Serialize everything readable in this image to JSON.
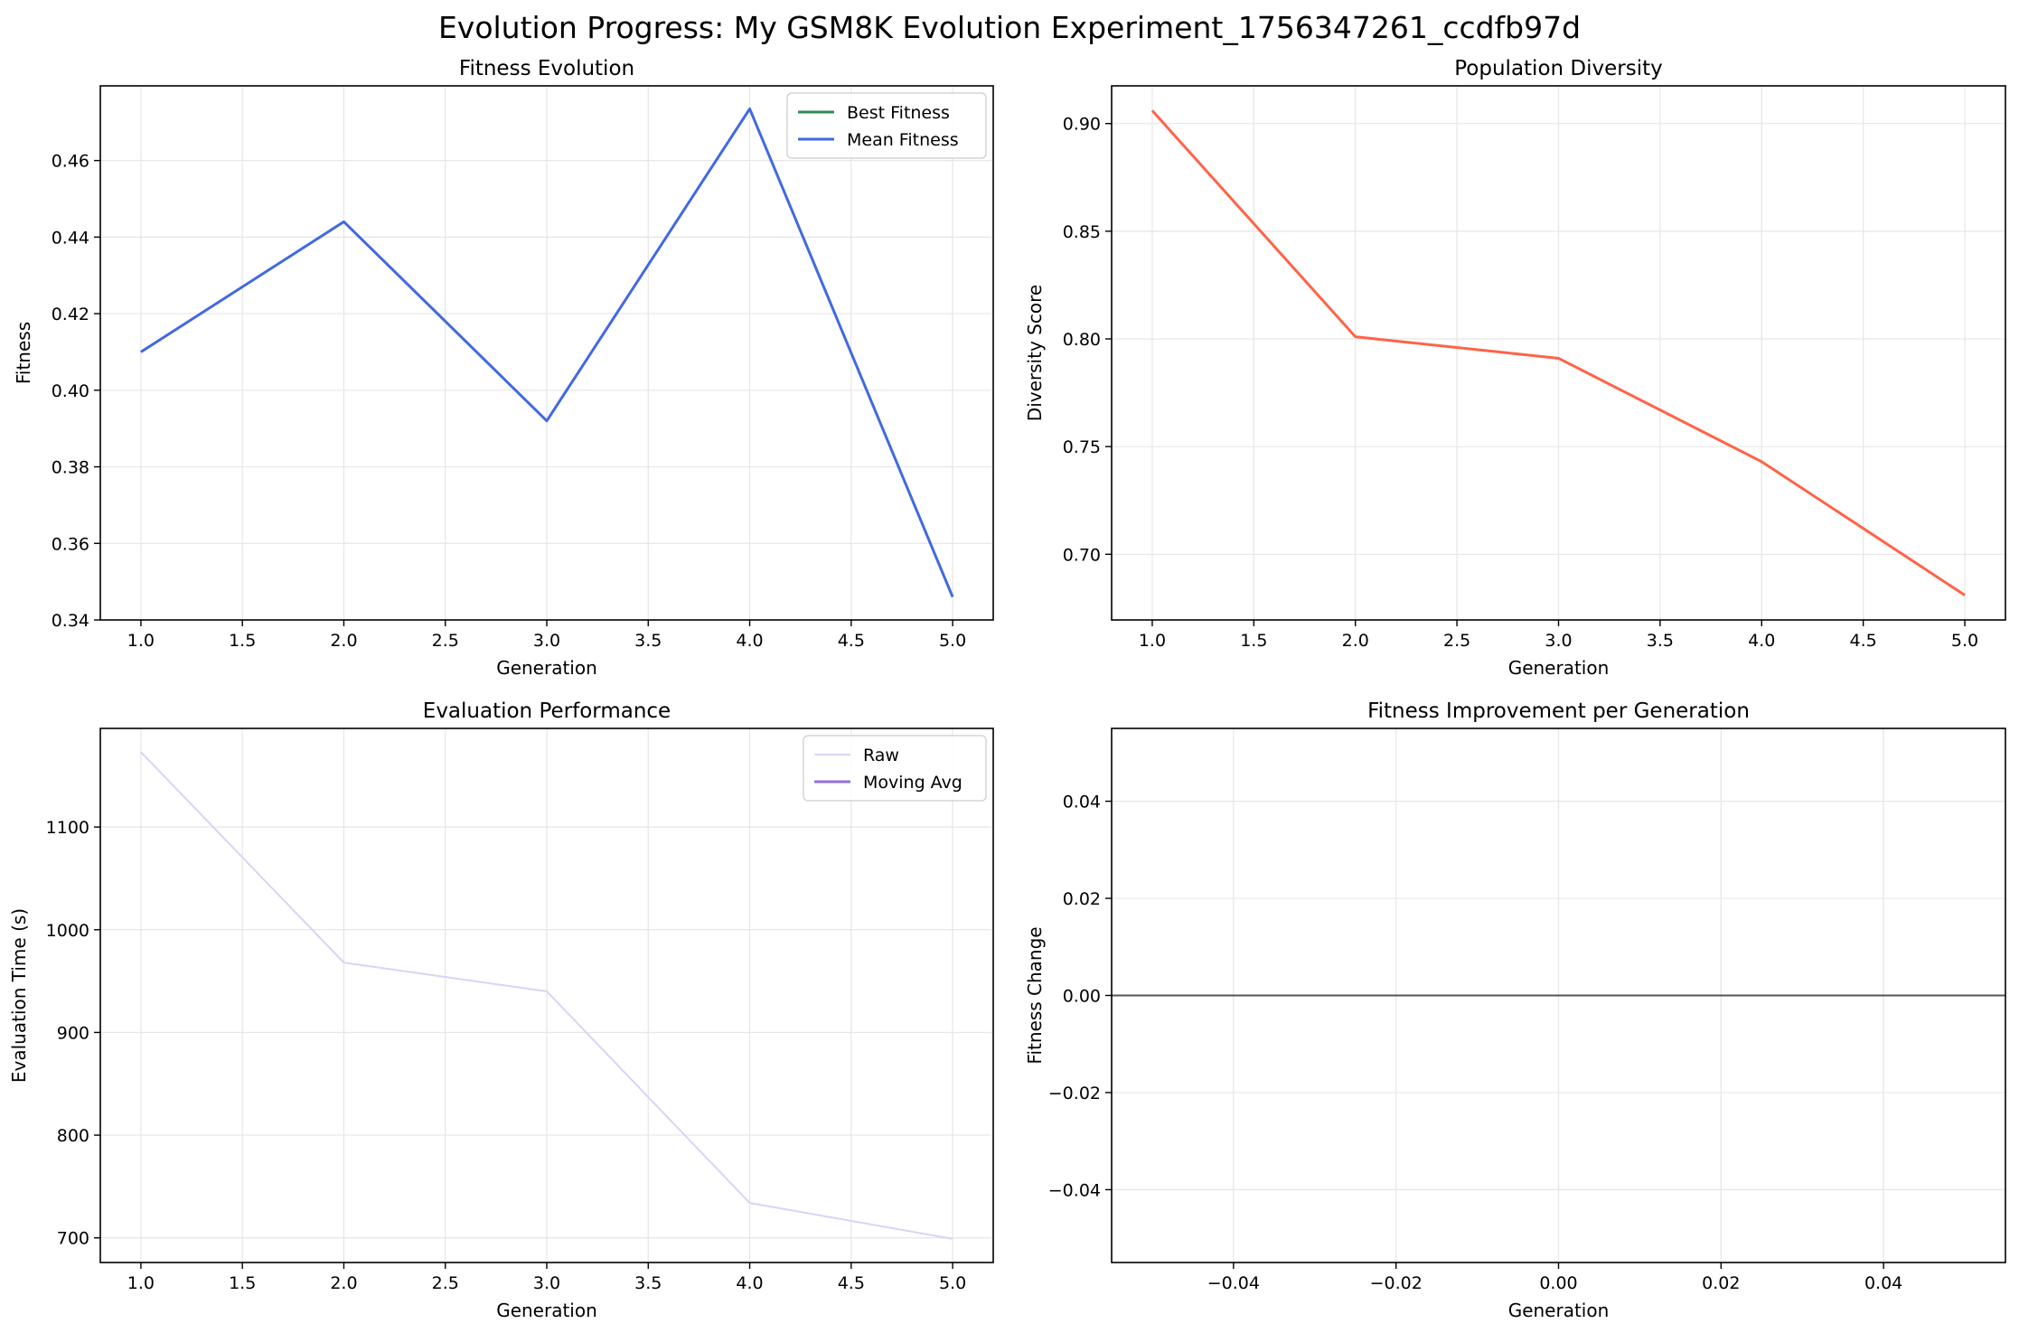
{
  "figure_title": "Evolution Progress: My GSM8K Evolution Experiment_1756347261_ccdfb97d",
  "colors": {
    "best_fitness": "#2e8b57",
    "mean_fitness": "#4169e1",
    "diversity": "#ff6347",
    "raw": "#d8d4f5",
    "moving_avg": "#9370db",
    "zero_line": "#555555",
    "grid": "#e6e6e6"
  },
  "chart_data": [
    {
      "type": "line",
      "title": "Fitness Evolution",
      "xlabel": "Generation",
      "ylabel": "Fitness",
      "xlim": [
        0.8,
        5.2
      ],
      "ylim": [
        0.34,
        0.4795
      ],
      "xticks": [
        1.0,
        1.5,
        2.0,
        2.5,
        3.0,
        3.5,
        4.0,
        4.5,
        5.0
      ],
      "xtick_labels": [
        "1.0",
        "1.5",
        "2.0",
        "2.5",
        "3.0",
        "3.5",
        "4.0",
        "4.5",
        "5.0"
      ],
      "yticks": [
        0.34,
        0.36,
        0.38,
        0.4,
        0.42,
        0.44,
        0.46
      ],
      "ytick_labels": [
        "0.34",
        "0.36",
        "0.38",
        "0.40",
        "0.42",
        "0.44",
        "0.46"
      ],
      "grid": true,
      "legend": "top-right",
      "series": [
        {
          "name": "Best Fitness",
          "color_key": "best_fitness",
          "width": 3,
          "x": [],
          "y": []
        },
        {
          "name": "Mean Fitness",
          "color_key": "mean_fitness",
          "width": 3,
          "x": [
            1,
            2,
            3,
            4,
            5
          ],
          "y": [
            0.41,
            0.444,
            0.392,
            0.4735,
            0.346
          ]
        }
      ]
    },
    {
      "type": "line",
      "title": "Population Diversity",
      "xlabel": "Generation",
      "ylabel": "Diversity Score",
      "xlim": [
        0.8,
        5.2
      ],
      "ylim": [
        0.6695,
        0.9175
      ],
      "xticks": [
        1.0,
        1.5,
        2.0,
        2.5,
        3.0,
        3.5,
        4.0,
        4.5,
        5.0
      ],
      "xtick_labels": [
        "1.0",
        "1.5",
        "2.0",
        "2.5",
        "3.0",
        "3.5",
        "4.0",
        "4.5",
        "5.0"
      ],
      "yticks": [
        0.7,
        0.75,
        0.8,
        0.85,
        0.9
      ],
      "ytick_labels": [
        "0.70",
        "0.75",
        "0.80",
        "0.85",
        "0.90"
      ],
      "grid": true,
      "legend": "none",
      "series": [
        {
          "color_key": "diversity",
          "width": 3,
          "x": [
            1,
            2,
            3,
            4,
            5
          ],
          "y": [
            0.906,
            0.801,
            0.791,
            0.743,
            0.681
          ]
        }
      ]
    },
    {
      "type": "line",
      "title": "Evaluation Performance",
      "xlabel": "Generation",
      "ylabel": "Evaluation Time (s)",
      "xlim": [
        0.8,
        5.2
      ],
      "ylim": [
        676,
        1196
      ],
      "xticks": [
        1.0,
        1.5,
        2.0,
        2.5,
        3.0,
        3.5,
        4.0,
        4.5,
        5.0
      ],
      "xtick_labels": [
        "1.0",
        "1.5",
        "2.0",
        "2.5",
        "3.0",
        "3.5",
        "4.0",
        "4.5",
        "5.0"
      ],
      "yticks": [
        700,
        800,
        900,
        1000,
        1100
      ],
      "ytick_labels": [
        "700",
        "800",
        "900",
        "1000",
        "1100"
      ],
      "grid": true,
      "legend": "top-right",
      "series": [
        {
          "name": "Raw",
          "color_key": "raw",
          "width": 2,
          "x": [
            1,
            2,
            3,
            4,
            5
          ],
          "y": [
            1173,
            968,
            940,
            734,
            699
          ]
        },
        {
          "name": "Moving Avg",
          "color_key": "moving_avg",
          "width": 3,
          "x": [],
          "y": []
        }
      ]
    },
    {
      "type": "bar",
      "title": "Fitness Improvement per Generation",
      "xlabel": "Generation",
      "ylabel": "Fitness Change",
      "xlim": [
        -0.055,
        0.055
      ],
      "ylim": [
        -0.055,
        0.055
      ],
      "xticks": [
        -0.04,
        -0.02,
        0.0,
        0.02,
        0.04
      ],
      "xtick_labels": [
        "−0.04",
        "−0.02",
        "0.00",
        "0.02",
        "0.04"
      ],
      "yticks": [
        -0.04,
        -0.02,
        0.0,
        0.02,
        0.04
      ],
      "ytick_labels": [
        "−0.04",
        "−0.02",
        "0.00",
        "0.02",
        "0.04"
      ],
      "grid": true,
      "legend": "none",
      "hline": 0,
      "categories": [],
      "values": []
    }
  ]
}
